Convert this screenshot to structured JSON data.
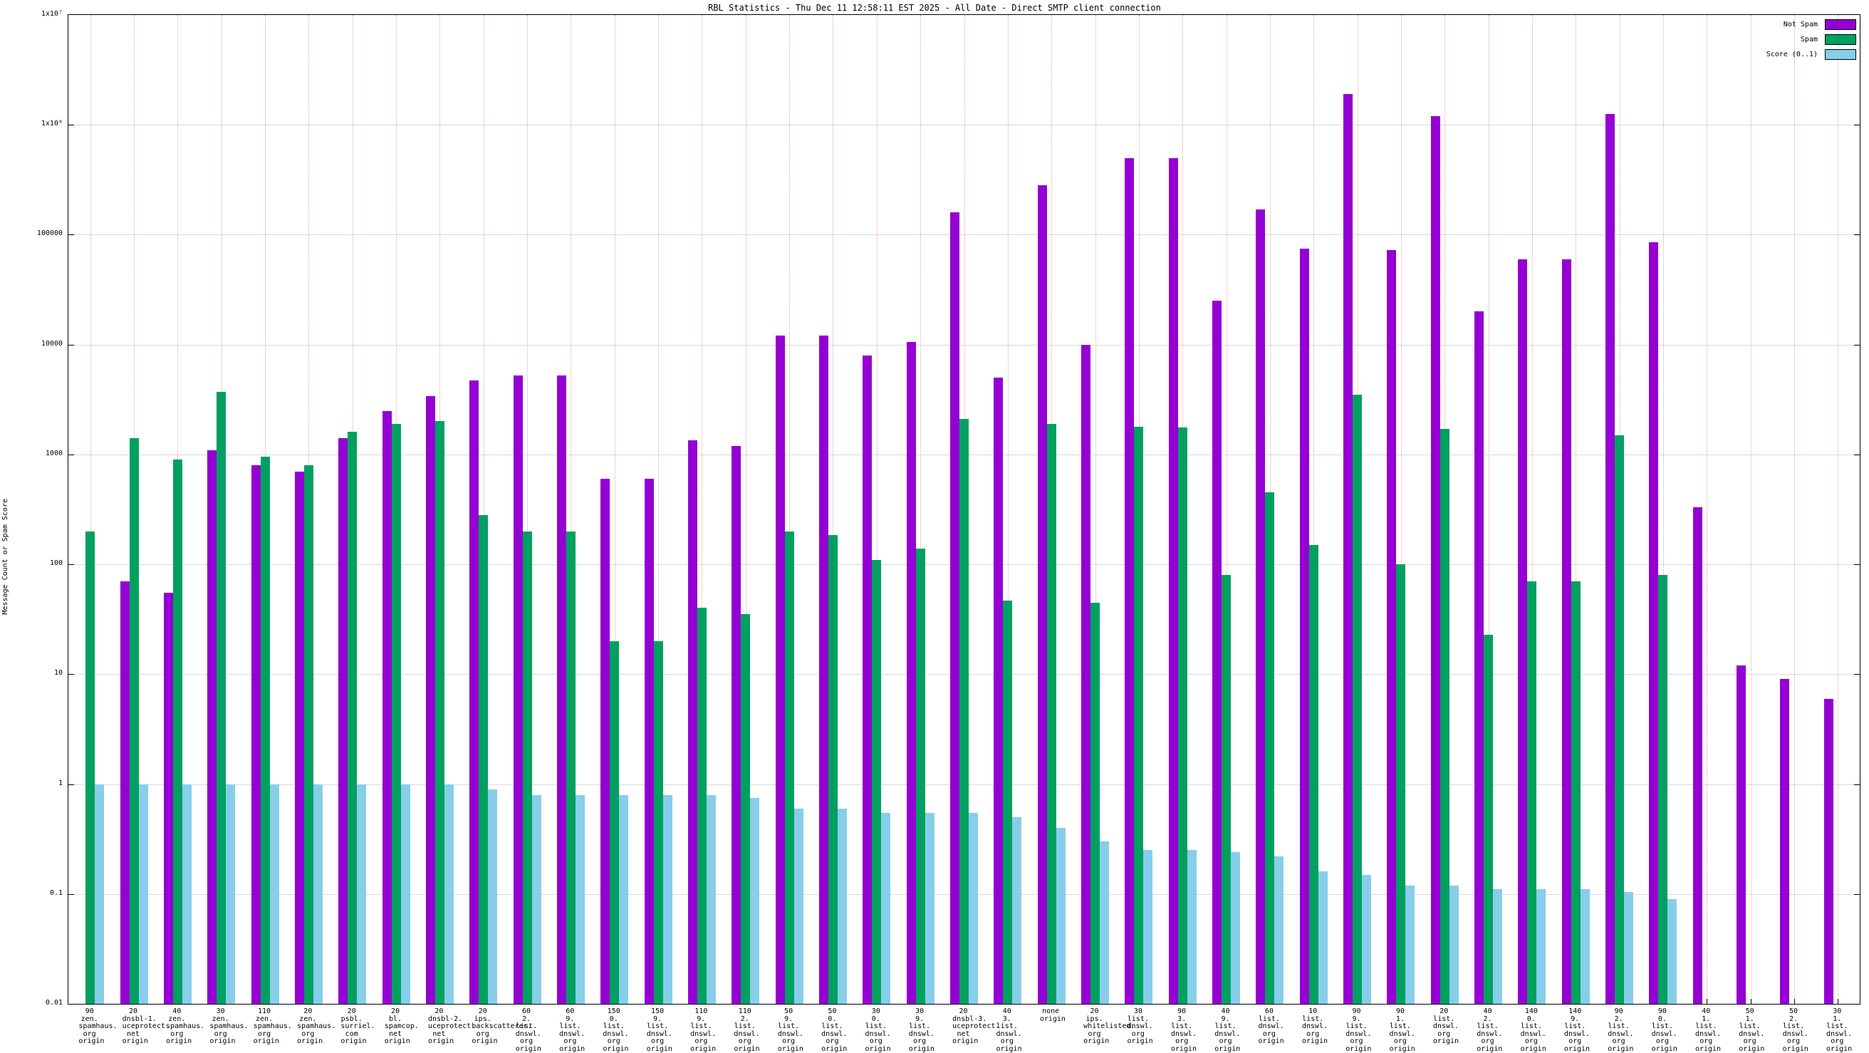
{
  "chart_data": {
    "type": "bar",
    "title": "RBL Statistics - Thu Dec 11 12:58:11 EST 2025 - All Date - Direct SMTP client connection",
    "xlabel": "",
    "ylabel": "Message Count or Spam Score",
    "y_scale": "log",
    "ylim": [
      0.01,
      10000000
    ],
    "y_ticks": [
      "0.01",
      "0.1",
      "1",
      "10",
      "100",
      "1000",
      "10000",
      "100000",
      "1x10⁶",
      "1x10⁷"
    ],
    "grid": true,
    "legend_position": "top-right",
    "categories": [
      [
        "90",
        "zen.",
        "spamhaus.",
        "org",
        "origin"
      ],
      [
        "20",
        "dnsbl-1.",
        "uceprotect.",
        "net",
        "origin"
      ],
      [
        "40",
        "zen.",
        "spamhaus.",
        "org",
        "origin"
      ],
      [
        "30",
        "zen.",
        "spamhaus.",
        "org",
        "origin"
      ],
      [
        "110",
        "zen.",
        "spamhaus.",
        "org",
        "origin"
      ],
      [
        "20",
        "zen.",
        "spamhaus.",
        "org",
        "origin"
      ],
      [
        "20",
        "psbl.",
        "surriel.",
        "com",
        "origin"
      ],
      [
        "20",
        "bl.",
        "spamcop.",
        "net",
        "origin"
      ],
      [
        "20",
        "dnsbl-2.",
        "uceprotect.",
        "net",
        "origin"
      ],
      [
        "20",
        "ips.",
        "backscatterer.",
        "org",
        "origin"
      ],
      [
        "60",
        "2.",
        "list.",
        "dnswl.",
        "org",
        "origin"
      ],
      [
        "60",
        "9.",
        "list.",
        "dnswl.",
        "org",
        "origin"
      ],
      [
        "150",
        "0.",
        "list.",
        "dnswl.",
        "org",
        "origin"
      ],
      [
        "150",
        "9.",
        "list.",
        "dnswl.",
        "org",
        "origin"
      ],
      [
        "110",
        "9.",
        "list.",
        "dnswl.",
        "org",
        "origin"
      ],
      [
        "110",
        "2.",
        "list.",
        "dnswl.",
        "org",
        "origin"
      ],
      [
        "50",
        "9.",
        "list.",
        "dnswl.",
        "org",
        "origin"
      ],
      [
        "50",
        "0.",
        "list.",
        "dnswl.",
        "org",
        "origin"
      ],
      [
        "30",
        "0.",
        "list.",
        "dnswl.",
        "org",
        "origin"
      ],
      [
        "30",
        "9.",
        "list.",
        "dnswl.",
        "org",
        "origin"
      ],
      [
        "20",
        "dnsbl-3.",
        "uceprotect.",
        "net",
        "origin"
      ],
      [
        "40",
        "3.",
        "list.",
        "dnswl.",
        "org",
        "origin"
      ],
      [
        "none",
        "origin"
      ],
      [
        "20",
        "ips.",
        "whitelisted.",
        "org",
        "origin"
      ],
      [
        "30",
        "list.",
        "dnswl.",
        "org",
        "origin"
      ],
      [
        "90",
        "3.",
        "list.",
        "dnswl.",
        "org",
        "origin"
      ],
      [
        "40",
        "9.",
        "list.",
        "dnswl.",
        "org",
        "origin"
      ],
      [
        "60",
        "list.",
        "dnswl.",
        "org",
        "origin"
      ],
      [
        "10",
        "list.",
        "dnswl.",
        "org",
        "origin"
      ],
      [
        "90",
        "9.",
        "list.",
        "dnswl.",
        "org",
        "origin"
      ],
      [
        "90",
        "1.",
        "list.",
        "dnswl.",
        "org",
        "origin"
      ],
      [
        "20",
        "list.",
        "dnswl.",
        "org",
        "origin"
      ],
      [
        "40",
        "2.",
        "list.",
        "dnswl.",
        "org",
        "origin"
      ],
      [
        "140",
        "0.",
        "list.",
        "dnswl.",
        "org",
        "origin"
      ],
      [
        "140",
        "9.",
        "list.",
        "dnswl.",
        "org",
        "origin"
      ],
      [
        "90",
        "2.",
        "list.",
        "dnswl.",
        "org",
        "origin"
      ],
      [
        "90",
        "0.",
        "list.",
        "dnswl.",
        "org",
        "origin"
      ],
      [
        "40",
        "1.",
        "list.",
        "dnswl.",
        "org",
        "origin"
      ],
      [
        "50",
        "1.",
        "list.",
        "dnswl.",
        "org",
        "origin"
      ],
      [
        "50",
        "2.",
        "list.",
        "dnswl.",
        "org",
        "origin"
      ],
      [
        "30",
        "1.",
        "list.",
        "dnswl.",
        "org",
        "origin"
      ]
    ],
    "series": [
      {
        "name": "Not Spam",
        "color": "#9400d3",
        "values": [
          null,
          70,
          55,
          1100,
          800,
          700,
          1400,
          2500,
          3400,
          4700,
          5200,
          5200,
          600,
          600,
          1350,
          1200,
          12000,
          12000,
          8000,
          10500,
          160000,
          5000,
          280000,
          10000,
          500000,
          500000,
          25000,
          170000,
          75000,
          1900000,
          72000,
          1200000,
          20000,
          60000,
          60000,
          1250000,
          85000,
          330,
          12,
          9,
          6
        ]
      },
      {
        "name": "Spam",
        "color": "#00a060",
        "values": [
          200,
          1400,
          900,
          3700,
          950,
          800,
          1600,
          1900,
          2000,
          280,
          200,
          200,
          20,
          20,
          40,
          35,
          200,
          185,
          110,
          140,
          2100,
          47,
          1900,
          45,
          1800,
          1750,
          80,
          450,
          150,
          3500,
          100,
          1700,
          23,
          70,
          70,
          1500,
          80,
          null,
          null,
          null,
          null
        ]
      },
      {
        "name": "Score (0..1)",
        "color": "#87ceeb",
        "values": [
          1,
          1,
          1,
          1,
          1,
          1,
          1,
          1,
          1,
          0.9,
          0.8,
          0.8,
          0.8,
          0.8,
          0.8,
          0.75,
          0.6,
          0.6,
          0.55,
          0.55,
          0.55,
          0.5,
          0.4,
          0.3,
          0.25,
          0.25,
          0.24,
          0.22,
          0.16,
          0.15,
          0.12,
          0.12,
          0.11,
          0.11,
          0.11,
          0.105,
          0.09,
          null,
          null,
          null,
          null
        ]
      }
    ]
  }
}
